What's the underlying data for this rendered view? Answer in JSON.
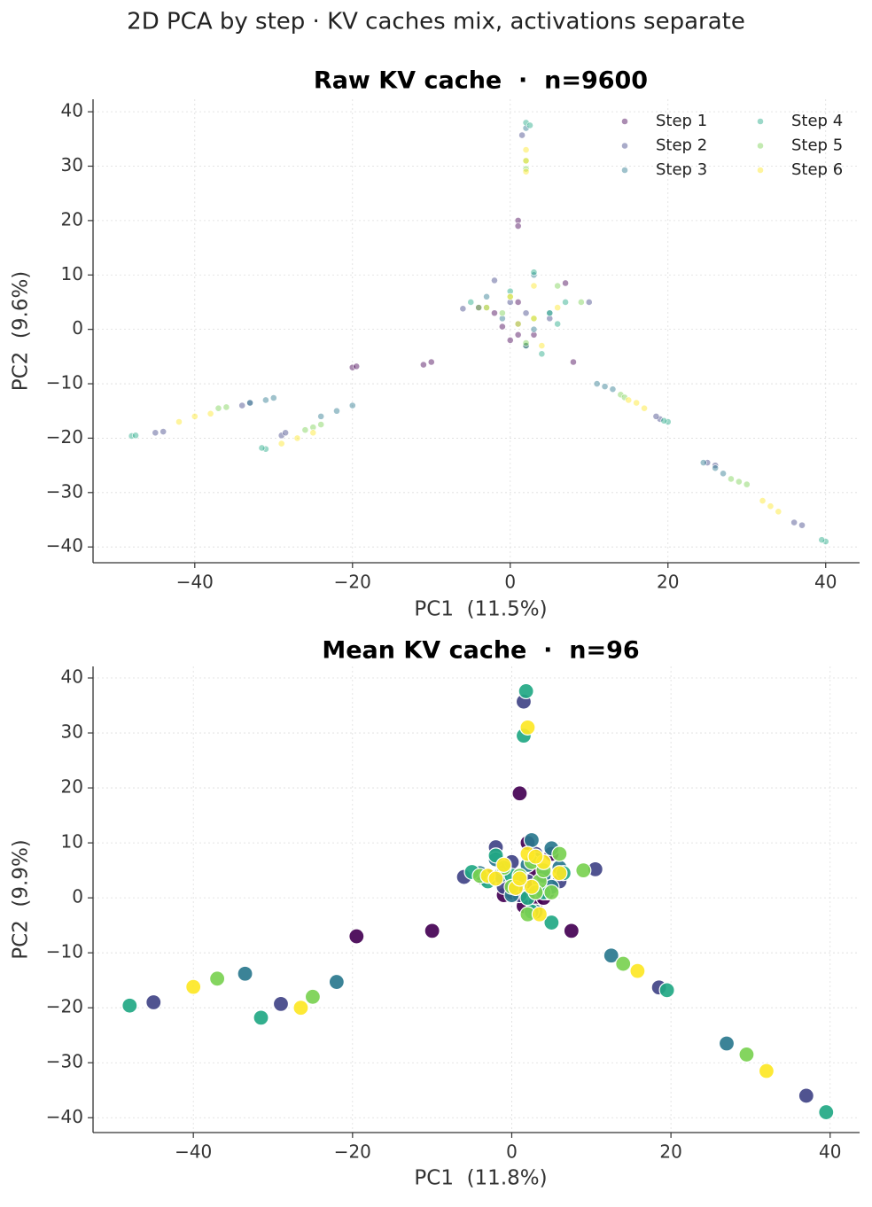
{
  "title": "2D PCA by step · KV caches mix, activations separate",
  "chart_data": [
    {
      "type": "scatter",
      "title": "Raw KV cache  ·  n=9600",
      "xlabel": "PC1  (11.5%)",
      "ylabel": "PC2  (9.6%)",
      "xlim": [
        -52.9,
        44.3
      ],
      "ylim": [
        -42.9,
        42.3
      ],
      "xticks": [
        {
          "value": -40,
          "label": "−40"
        },
        {
          "value": -20,
          "label": "−20"
        },
        0,
        20,
        40
      ],
      "yticks": [
        {
          "value": -40,
          "label": "−40"
        },
        {
          "value": -30,
          "label": "−30"
        },
        {
          "value": -20,
          "label": "−20"
        },
        {
          "value": -10,
          "label": "−10"
        },
        0,
        10,
        20,
        30,
        40
      ],
      "grid": true,
      "legend": "upper right",
      "series": [
        {
          "name": "Step 1",
          "color": "#440154",
          "x": [
            -1,
            0,
            1,
            2,
            1,
            1,
            -20,
            -19.5,
            -10,
            -11,
            8,
            7,
            -4,
            1,
            3,
            -2
          ],
          "y": [
            0.5,
            -2,
            -1,
            -3,
            20,
            19,
            -7,
            -6.8,
            -6,
            -6.5,
            -6,
            8.5,
            4,
            5,
            -1,
            3
          ]
        },
        {
          "name": "Step 2",
          "color": "#414487",
          "x": [
            -45,
            -44,
            -29,
            -28.5,
            -6,
            -2,
            0,
            2,
            5,
            10,
            19,
            18.5,
            37,
            36,
            1.5,
            -34,
            -33,
            25,
            26
          ],
          "y": [
            -19,
            -18.8,
            -19.5,
            -19,
            3.8,
            9,
            5,
            3,
            2,
            5,
            -16.5,
            -16,
            -36,
            -35.5,
            35.7,
            -14,
            -13.5,
            -24.5,
            -25
          ]
        },
        {
          "name": "Step 3",
          "color": "#2a788e",
          "x": [
            -33,
            -31,
            -30,
            -22,
            -20,
            -24,
            12,
            11,
            13,
            24.5,
            26,
            27,
            1,
            3,
            5,
            -1,
            2,
            3,
            -3
          ],
          "y": [
            -13.5,
            -13,
            -12.6,
            -15,
            -14,
            -16,
            -10.5,
            -10,
            -11,
            -24.5,
            -25.5,
            -26.5,
            1,
            0,
            3,
            2,
            37,
            10,
            6
          ]
        },
        {
          "name": "Step 4",
          "color": "#22a884",
          "x": [
            -48,
            -47.5,
            -31,
            -31.5,
            2,
            2.5,
            20,
            19.5,
            40,
            39.5,
            -5,
            0,
            3,
            5,
            7,
            6,
            4,
            2,
            -3
          ],
          "y": [
            -19.6,
            -19.5,
            -22,
            -21.8,
            38,
            37.5,
            -17,
            -16.8,
            -39,
            -38.7,
            5,
            7,
            10.5,
            3,
            5,
            1,
            -4.5,
            -3,
            4
          ]
        },
        {
          "name": "Step 5",
          "color": "#7ad151",
          "x": [
            -37,
            -36,
            -25,
            -24,
            -26,
            14,
            14.5,
            29,
            30,
            28,
            2,
            2,
            -4,
            0,
            3,
            6,
            2,
            9,
            -1
          ],
          "y": [
            -14.5,
            -14.3,
            -18,
            -17.5,
            -18.5,
            -12,
            -12.5,
            -28,
            -28.5,
            -27.5,
            29.5,
            31,
            4,
            6,
            2,
            8,
            -2.5,
            5,
            3
          ]
        },
        {
          "name": "Step 6",
          "color": "#fde725",
          "x": [
            -40,
            -42,
            -38,
            -27,
            -29,
            -25,
            16,
            17,
            15,
            32,
            33,
            34,
            2,
            2,
            2,
            0,
            3,
            -3,
            1,
            4,
            6,
            3
          ],
          "y": [
            -16,
            -17,
            -15.5,
            -20,
            -21,
            -19,
            -13.5,
            -14.5,
            -13,
            -31.5,
            -32.5,
            -33.5,
            31,
            33,
            29,
            6,
            8,
            4,
            1,
            -3,
            4,
            2
          ]
        }
      ]
    },
    {
      "type": "scatter",
      "title": "Mean KV cache  ·  n=96",
      "xlabel": "PC1  (11.8%)",
      "ylabel": "PC2  (9.9%)",
      "xlim": [
        -52.6,
        43.7
      ],
      "ylim": [
        -42.7,
        42.1
      ],
      "xticks": [
        {
          "value": -40,
          "label": "−40"
        },
        {
          "value": -20,
          "label": "−20"
        },
        0,
        20,
        40
      ],
      "yticks": [
        {
          "value": -40,
          "label": "−40"
        },
        {
          "value": -30,
          "label": "−30"
        },
        {
          "value": -20,
          "label": "−20"
        },
        {
          "value": -10,
          "label": "−10"
        },
        0,
        10,
        20,
        30,
        40
      ],
      "grid": true,
      "series": [
        {
          "color": "#440154",
          "x": [
            1,
            -19.5,
            -10,
            7.5,
            -1,
            1.5,
            3,
            5,
            2,
            -3,
            4,
            1,
            -1,
            2,
            0,
            3
          ],
          "y": [
            19,
            -7,
            -6,
            -6,
            0.5,
            -1.5,
            -1,
            8,
            10,
            4,
            0,
            3,
            5,
            2,
            1,
            5
          ]
        },
        {
          "color": "#414487",
          "x": [
            1.5,
            -45,
            -29,
            18.5,
            37,
            -6,
            -2,
            10.5,
            -3.5,
            0,
            2,
            4.5,
            6,
            3,
            1,
            -1
          ],
          "y": [
            35.7,
            -19,
            -19.3,
            -16.3,
            -36,
            3.8,
            9.2,
            5.2,
            3.5,
            6.5,
            3,
            1,
            3,
            8,
            0.5,
            2
          ]
        },
        {
          "color": "#2a788e",
          "x": [
            -33.5,
            -22,
            12.5,
            27,
            -1.5,
            2.5,
            5,
            3,
            1,
            4,
            -4,
            6,
            0,
            2,
            -2,
            5
          ],
          "y": [
            -13.8,
            -15.3,
            -10.5,
            -26.5,
            4,
            10.5,
            9,
            -2.5,
            2.5,
            4,
            4.5,
            5.5,
            0.5,
            6,
            7,
            2
          ]
        },
        {
          "color": "#22a884",
          "x": [
            -48,
            -31.5,
            1.8,
            19.5,
            39.5,
            5,
            -2,
            -5,
            3,
            6.5,
            1.5,
            2.5,
            0,
            4,
            -3,
            2
          ],
          "y": [
            -19.6,
            -21.8,
            37.6,
            -16.8,
            -39,
            -4.5,
            7.7,
            4.7,
            7,
            4.5,
            29.5,
            -2.5,
            4,
            1,
            3,
            0
          ]
        },
        {
          "color": "#7ad151",
          "x": [
            -37,
            -25,
            14,
            29.5,
            6,
            9,
            3.5,
            2.5,
            -4,
            0,
            5,
            -1,
            2,
            3,
            1,
            4
          ],
          "y": [
            -14.7,
            -18,
            -12,
            -28.5,
            8,
            5,
            3,
            6.5,
            4,
            2,
            1,
            5.5,
            -3,
            1,
            4,
            5
          ]
        },
        {
          "color": "#fde725",
          "x": [
            -40,
            -26.5,
            15.8,
            32,
            2,
            2,
            3.5,
            -1,
            -3,
            0.5,
            2.5,
            6,
            1,
            4,
            3,
            -2
          ],
          "y": [
            -16.2,
            -20,
            -13.3,
            -31.5,
            31,
            8,
            -3,
            6,
            4,
            1.8,
            2,
            4.5,
            3.5,
            6.5,
            7.5,
            3.5
          ]
        }
      ]
    }
  ]
}
